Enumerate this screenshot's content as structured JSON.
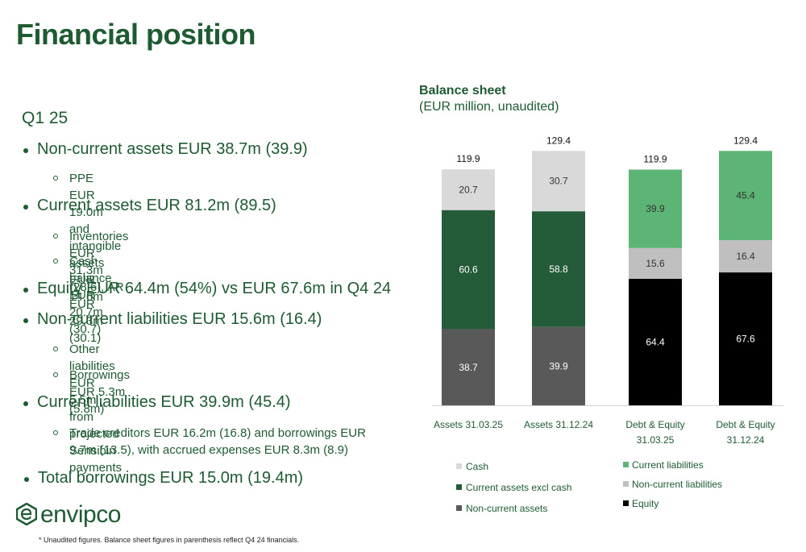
{
  "page": {
    "title": "Financial position",
    "period": "Q1 25",
    "footnote": "* Unaudited figures. Balance sheet figures in parenthesis reflect Q4 24 financials.",
    "logo_text": "envipco"
  },
  "bullets": [
    {
      "text": "Non-current assets EUR 38.7m (39.9)"
    },
    {
      "text": "PPE EUR 19.0m and intangible assets EUR 14.6m"
    },
    {
      "text": "Current assets EUR 81.2m (89.5)"
    },
    {
      "text": "Inventories EUR 31.3m (28.6), AR EUR 29.3m (30.1)"
    },
    {
      "text": "Cash balance EUR 20.7m (30.7)"
    },
    {
      "text": "Equity EUR 64.4m (54%) vs EUR 67.6m in Q4 24"
    },
    {
      "text": "Non-current liabilities EUR 15.6m (16.4)"
    },
    {
      "text": "Other liabilities EUR 5.5m from projected Sensibin payments"
    },
    {
      "text": "Borrowings EUR 5.3m (5.8m)"
    },
    {
      "text": "Current liabilities EUR 39.9m (45.4)"
    },
    {
      "text": "Trade creditors EUR 16.2m (16.8) and borrowings EUR 9.7m (13.5), with accrued expenses EUR 8.3m (8.9)"
    },
    {
      "text": "Total borrowings EUR 15.0m (19.4m)"
    }
  ],
  "chart_data": {
    "type": "bar",
    "stacked": true,
    "title": "Balance sheet",
    "subtitle": "(EUR million, unaudited)",
    "ylim": [
      0,
      130
    ],
    "grid": false,
    "groups": [
      {
        "category_lines": [
          "Assets 31.03.25"
        ],
        "total": "119.9",
        "segments": [
          {
            "series": "Non-current assets",
            "value": 38.7,
            "label": "38.7"
          },
          {
            "series": "Current assets excl cash",
            "value": 60.6,
            "label": "60.6"
          },
          {
            "series": "Cash",
            "value": 20.7,
            "label": "20.7"
          }
        ]
      },
      {
        "category_lines": [
          "Assets 31.12.24"
        ],
        "total": "129.4",
        "segments": [
          {
            "series": "Non-current assets",
            "value": 39.9,
            "label": "39.9"
          },
          {
            "series": "Current assets excl cash",
            "value": 58.8,
            "label": "58.8"
          },
          {
            "series": "Cash",
            "value": 30.7,
            "label": "30.7"
          }
        ]
      },
      {
        "category_lines": [
          "Debt & Equity",
          "31.03.25"
        ],
        "total": "119.9",
        "segments": [
          {
            "series": "Equity",
            "value": 64.4,
            "label": "64.4"
          },
          {
            "series": "Non-current liabilities",
            "value": 15.6,
            "label": "15.6"
          },
          {
            "series": "Current liabilities",
            "value": 39.9,
            "label": "39.9"
          }
        ]
      },
      {
        "category_lines": [
          "Debt & Equity",
          "31.12.24"
        ],
        "total": "129.4",
        "segments": [
          {
            "series": "Equity",
            "value": 67.6,
            "label": "67.6"
          },
          {
            "series": "Non-current liabilities",
            "value": 16.4,
            "label": "16.4"
          },
          {
            "series": "Current liabilities",
            "value": 45.4,
            "label": "45.4"
          }
        ]
      }
    ],
    "colors": {
      "Cash": "#d9d9d9",
      "Current assets excl cash": "#245c3a",
      "Non-current assets": "#595959",
      "Current liabilities": "#5cb574",
      "Non-current liabilities": "#bfbfbf",
      "Equity": "#000000"
    },
    "legend_left": [
      "Cash",
      "Current assets excl cash",
      "Non-current assets"
    ],
    "legend_right": [
      "Current liabilities",
      "Non-current liabilities",
      "Equity"
    ]
  }
}
